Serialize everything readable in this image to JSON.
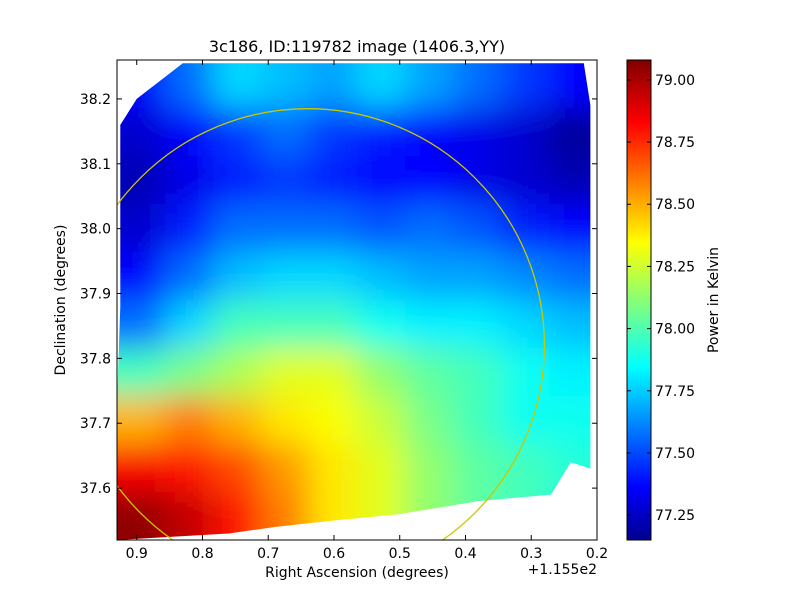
{
  "chart_data": {
    "type": "heatmap",
    "title": "3c186, ID:119782 image (1406.3,YY)",
    "xlabel": "Right Ascension (degrees)",
    "ylabel": "Declination (degrees)",
    "x_offset_label": "+1.155e2",
    "xlim": [
      0.93,
      0.2
    ],
    "ylim": [
      37.52,
      38.26
    ],
    "x_ticks": [
      0.9,
      0.8,
      0.7,
      0.6,
      0.5,
      0.4,
      0.3,
      0.2
    ],
    "x_tick_labels": [
      "0.9",
      "0.8",
      "0.7",
      "0.6",
      "0.5",
      "0.4",
      "0.3",
      "0.2"
    ],
    "y_ticks": [
      37.6,
      37.7,
      37.8,
      37.9,
      38.0,
      38.1,
      38.2
    ],
    "y_tick_labels": [
      "37.6",
      "37.7",
      "37.8",
      "37.9",
      "38.0",
      "38.1",
      "38.2"
    ],
    "colorbar": {
      "label": "Power in Kelvin",
      "range": [
        77.15,
        79.08
      ],
      "ticks": [
        77.25,
        77.5,
        77.75,
        78.0,
        78.25,
        78.5,
        78.75,
        79.0
      ],
      "tick_labels": [
        "77.25",
        "77.50",
        "77.75",
        "78.00",
        "78.25",
        "78.50",
        "78.75",
        "79.00"
      ],
      "colormap": "jet"
    },
    "circle": {
      "center_ra": 0.64,
      "center_dec": 37.82,
      "radius_deg": 0.36,
      "color": "#c8c800"
    },
    "coverage_polygon": [
      [
        0.83,
        38.255
      ],
      [
        0.22,
        38.255
      ],
      [
        0.21,
        38.19
      ],
      [
        0.21,
        37.63
      ],
      [
        0.24,
        37.64
      ],
      [
        0.27,
        37.59
      ],
      [
        0.38,
        37.58
      ],
      [
        0.5,
        37.56
      ],
      [
        0.6,
        37.55
      ],
      [
        0.69,
        37.54
      ],
      [
        0.76,
        37.53
      ],
      [
        0.93,
        37.52
      ],
      [
        0.93,
        37.73
      ],
      [
        0.925,
        37.88
      ],
      [
        0.925,
        38.16
      ],
      [
        0.9,
        38.2
      ]
    ],
    "values": [
      [
        77.4,
        77.6,
        77.8,
        77.75,
        77.7,
        77.8,
        77.7,
        77.6,
        77.5,
        77.4
      ],
      [
        77.3,
        77.4,
        77.5,
        77.6,
        77.5,
        77.45,
        77.4,
        77.35,
        77.3,
        77.2
      ],
      [
        77.25,
        77.35,
        77.45,
        77.5,
        77.45,
        77.4,
        77.4,
        77.35,
        77.3,
        77.25
      ],
      [
        77.3,
        77.45,
        77.6,
        77.6,
        77.6,
        77.55,
        77.6,
        77.55,
        77.45,
        77.4
      ],
      [
        77.4,
        77.6,
        77.75,
        77.8,
        77.8,
        77.75,
        77.7,
        77.7,
        77.65,
        77.6
      ],
      [
        77.6,
        77.8,
        78.0,
        78.0,
        78.0,
        77.9,
        77.85,
        77.85,
        77.8,
        77.75
      ],
      [
        78.0,
        78.1,
        78.2,
        78.3,
        78.3,
        78.15,
        78.05,
        78.0,
        77.9,
        77.85
      ],
      [
        78.5,
        78.6,
        78.5,
        78.4,
        78.35,
        78.25,
        78.1,
        78.0,
        77.9,
        77.9
      ],
      [
        78.85,
        78.8,
        78.7,
        78.55,
        78.4,
        78.3,
        78.15,
        78.05,
        78.0,
        77.95
      ],
      [
        79.05,
        78.95,
        78.8,
        78.6,
        78.4,
        78.3,
        78.15,
        78.05,
        78.0,
        77.95
      ]
    ]
  }
}
